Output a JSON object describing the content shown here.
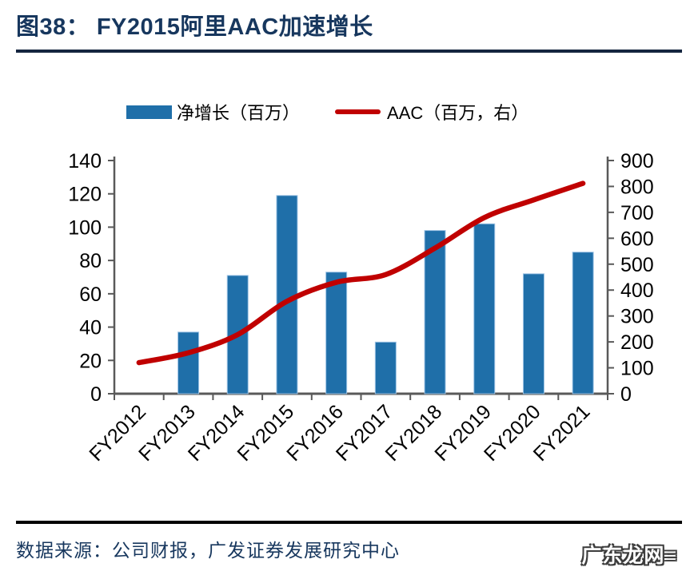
{
  "header": {
    "title": "图38： FY2015阿里AAC加速增长"
  },
  "legend": {
    "bar_label": "净增长（百万）",
    "line_label": "AAC（百万，右）"
  },
  "footer": {
    "source": "数据来源：公司财报，广发证券发展研究中心",
    "watermark": "广东龙网≡"
  },
  "colors": {
    "bar": "#1f6fa9",
    "bar_edge": "#9cc2e4",
    "line": "#c00000",
    "axis": "#595959",
    "tick_label": "#000000",
    "title": "#17375e"
  },
  "chart_data": {
    "type": "bar",
    "subtype": "combo-bar-line-dual-axis",
    "title": "FY2015阿里AAC加速增长",
    "categories": [
      "FY2012",
      "FY2013",
      "FY2014",
      "FY2015",
      "FY2016",
      "FY2017",
      "FY2018",
      "FY2019",
      "FY2020",
      "FY2021"
    ],
    "series": [
      {
        "name": "净增长（百万）",
        "type": "bar",
        "axis": "left",
        "values": [
          null,
          37,
          71,
          119,
          73,
          31,
          98,
          102,
          72,
          85
        ],
        "color": "#1f6fa9"
      },
      {
        "name": "AAC（百万，右）",
        "type": "line",
        "axis": "right",
        "smoothed": true,
        "values": [
          120,
          158,
          228,
          357,
          430,
          460,
          562,
          680,
          748,
          812
        ],
        "color": "#c00000"
      }
    ],
    "left_axis": {
      "min": 0,
      "max": 140,
      "step": 20
    },
    "right_axis": {
      "min": 0,
      "max": 900,
      "step": 100
    },
    "grid": false,
    "legend_position": "top",
    "x_tick_rotation": -45
  }
}
